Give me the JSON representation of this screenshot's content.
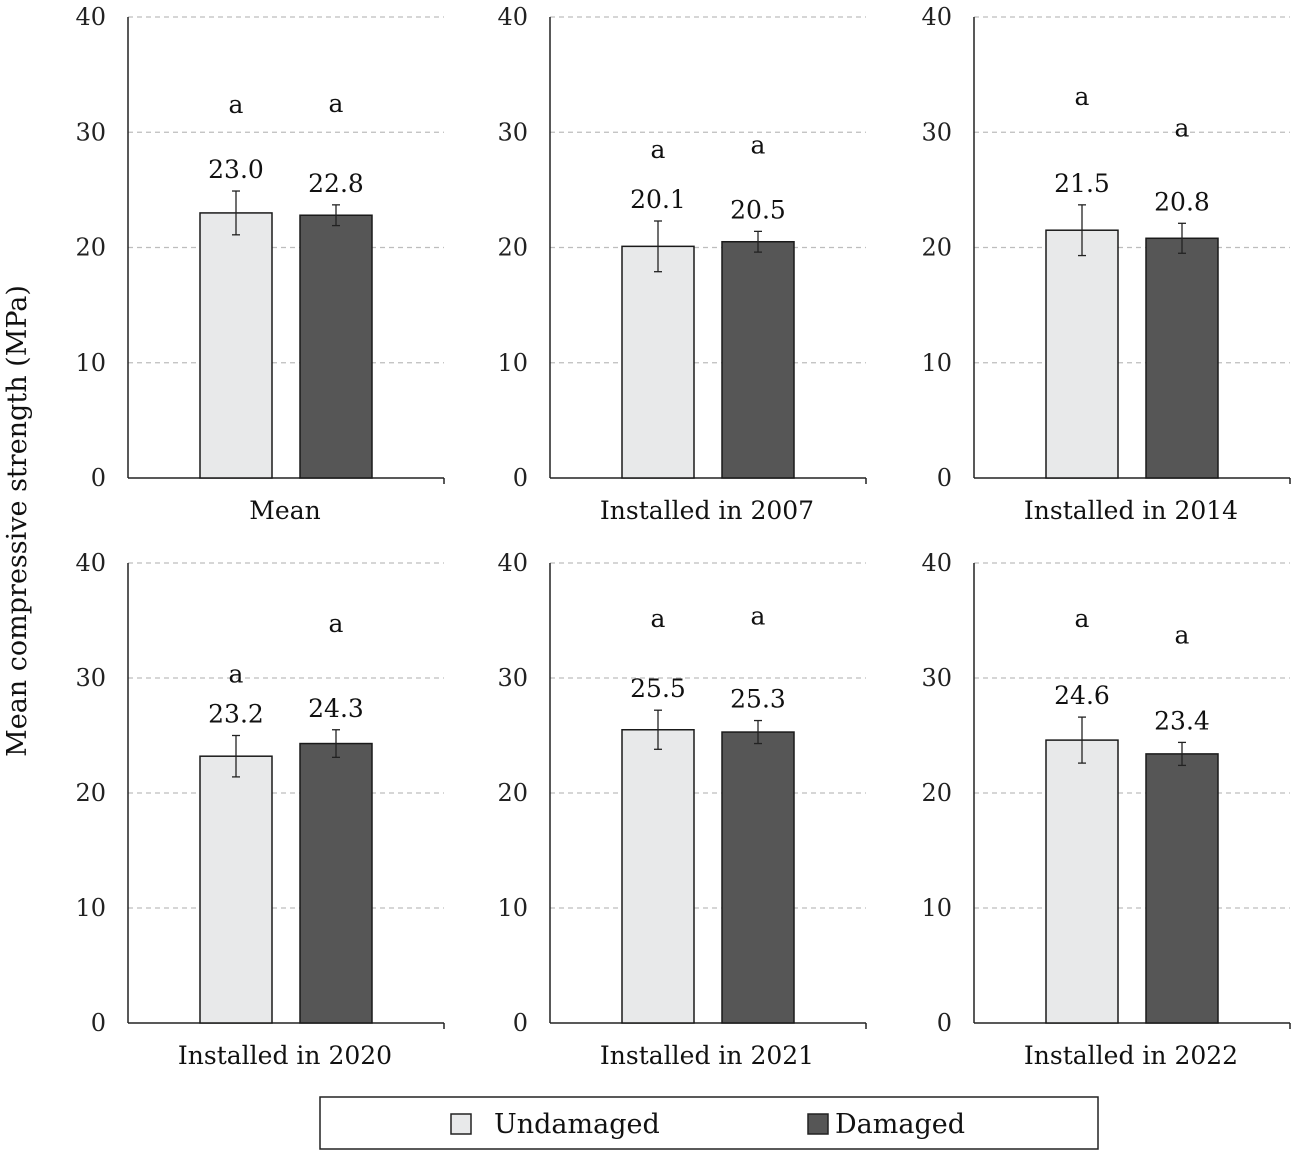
{
  "chart_data": {
    "type": "bar",
    "ylabel": "Mean compressive strength (MPa)",
    "ylim": [
      0,
      40
    ],
    "yticks": [
      0,
      10,
      20,
      30,
      40
    ],
    "grid": "horizontal dashed",
    "series": [
      {
        "name": "Undamaged",
        "color": "#e8e9ea"
      },
      {
        "name": "Damaged",
        "color": "#565656"
      }
    ],
    "panels": [
      {
        "title": "Mean",
        "values": [
          23.0,
          22.8
        ],
        "labels": [
          "23.0",
          "22.8"
        ],
        "errors": [
          1.9,
          0.9
        ],
        "significance": [
          "a",
          "a"
        ]
      },
      {
        "title": "Installed in 2007",
        "values": [
          20.1,
          20.5
        ],
        "labels": [
          "20.1",
          "20.5"
        ],
        "errors": [
          2.2,
          0.9
        ],
        "significance": [
          "a",
          "a"
        ]
      },
      {
        "title": "Installed in 2014",
        "values": [
          21.5,
          20.8
        ],
        "labels": [
          "21.5",
          "20.8"
        ],
        "errors": [
          2.2,
          1.3
        ],
        "significance": [
          "a",
          "a"
        ]
      },
      {
        "title": "Installed in 2020",
        "values": [
          23.2,
          24.3
        ],
        "labels": [
          "23.2",
          "24.3"
        ],
        "errors": [
          1.8,
          1.2
        ],
        "significance": [
          "a",
          "a"
        ]
      },
      {
        "title": "Installed in 2021",
        "values": [
          25.5,
          25.3
        ],
        "labels": [
          "25.5",
          "25.3"
        ],
        "errors": [
          1.7,
          1.0
        ],
        "significance": [
          "a",
          "a"
        ]
      },
      {
        "title": "Installed in 2022",
        "values": [
          24.6,
          23.4
        ],
        "labels": [
          "24.6",
          "23.4"
        ],
        "errors": [
          2.0,
          1.0
        ],
        "significance": [
          "a",
          "a"
        ]
      }
    ],
    "legend": {
      "position": "bottom",
      "entries": [
        "Undamaged",
        "Damaged"
      ]
    }
  }
}
